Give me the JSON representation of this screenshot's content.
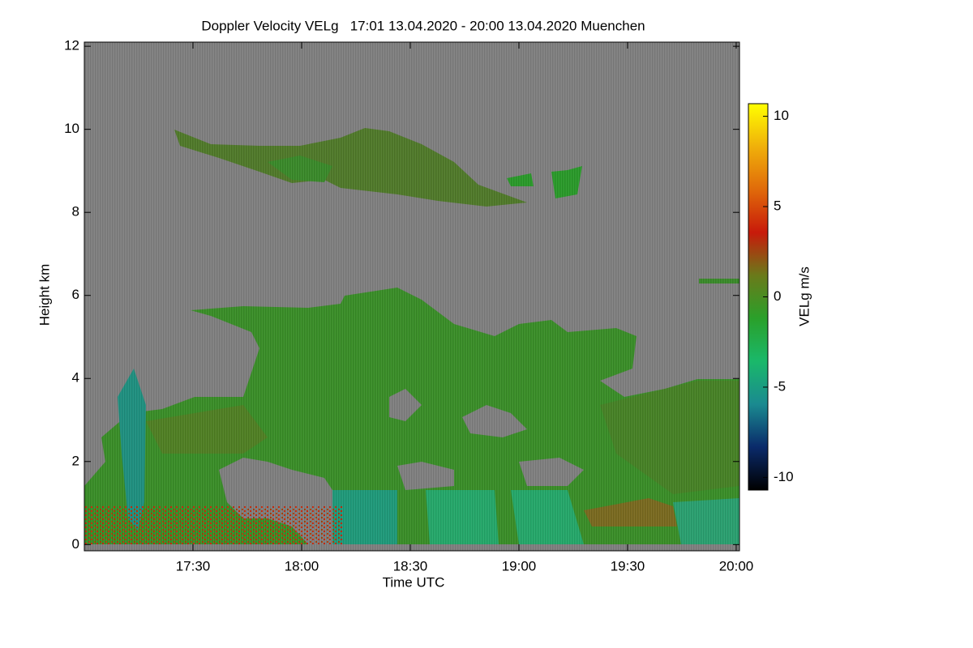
{
  "chart_data": {
    "type": "heatmap",
    "title": "Doppler Velocity VELg   17:01 13.04.2020 - 20:00 13.04.2020 Muenchen",
    "x_label": "Time UTC",
    "y_label": "Height km",
    "xlim": [
      17.0,
      20.015
    ],
    "xticks": [
      {
        "value": 17.5,
        "label": "17:30"
      },
      {
        "value": 18.0,
        "label": "18:00"
      },
      {
        "value": 18.5,
        "label": "18:30"
      },
      {
        "value": 19.0,
        "label": "19:00"
      },
      {
        "value": 19.5,
        "label": "19:30"
      },
      {
        "value": 20.0,
        "label": "20:00"
      }
    ],
    "ylim": [
      -0.15,
      12.1
    ],
    "yticks": [
      0,
      2,
      4,
      6,
      8,
      10,
      12
    ],
    "background": "#808080",
    "colorbar": {
      "label": "VELg m/s",
      "lim": [
        -10.7,
        10.7
      ],
      "ticks": [
        -10,
        -5,
        0,
        5,
        10
      ],
      "colormap": [
        "#000000",
        "#0a2a6a",
        "#1a8a90",
        "#1ab86a",
        "#2aa02a",
        "#6a7a1a",
        "#c81a0a",
        "#e06a0a",
        "#f0b00a",
        "#ffff00"
      ]
    }
  }
}
